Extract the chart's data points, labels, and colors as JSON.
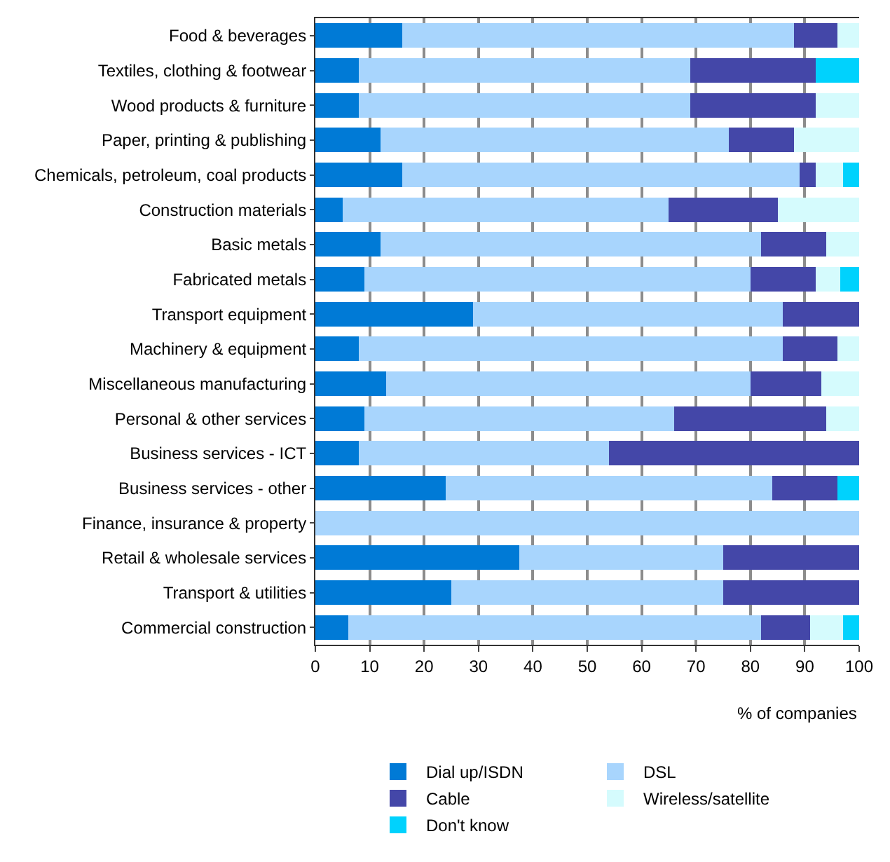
{
  "chart_data": {
    "type": "bar",
    "orientation": "horizontal",
    "stacked": true,
    "xlabel": "% of companies",
    "categories": [
      "Food & beverages",
      "Textiles, clothing & footwear",
      "Wood products & furniture",
      "Paper, printing & publishing",
      "Chemicals, petroleum, coal products",
      "Construction materials",
      "Basic metals",
      "Fabricated metals",
      "Transport equipment",
      "Machinery & equipment",
      "Miscellaneous manufacturing",
      "Personal & other services",
      "Business services - ICT",
      "Business services - other",
      "Finance, insurance & property",
      "Retail & wholesale services",
      "Transport & utilities",
      "Commercial construction"
    ],
    "series": [
      {
        "name": "Dial up/ISDN",
        "color": "#007ad6",
        "values": [
          16,
          8,
          8,
          12,
          16,
          5,
          12,
          9,
          29,
          8,
          13,
          9,
          8,
          24,
          0,
          37.5,
          25,
          6
        ]
      },
      {
        "name": "DSL",
        "color": "#a8d5fd",
        "values": [
          72,
          61,
          61,
          64,
          73,
          60,
          70,
          71,
          57,
          78,
          67,
          57,
          46,
          60,
          100,
          37.5,
          50,
          76
        ]
      },
      {
        "name": "Cable",
        "color": "#4447a8",
        "values": [
          8,
          23,
          23,
          12,
          3,
          20,
          12,
          12,
          14,
          10,
          13,
          28,
          46,
          12,
          0,
          25,
          25,
          9
        ]
      },
      {
        "name": "Wireless/satellite",
        "color": "#d5fbfd",
        "values": [
          4,
          0,
          8,
          12,
          5,
          15,
          6,
          4.5,
          0,
          4,
          7,
          6,
          0,
          0,
          0,
          0,
          0,
          6
        ]
      },
      {
        "name": "Don't know",
        "color": "#00d2fd",
        "values": [
          0,
          8,
          0,
          0,
          3,
          0,
          0,
          3.5,
          0,
          0,
          0,
          0,
          0,
          4,
          0,
          0,
          0,
          3
        ]
      }
    ],
    "xlim": [
      0,
      100
    ],
    "xticks": [
      0,
      10,
      20,
      30,
      40,
      50,
      60,
      70,
      80,
      90,
      100
    ],
    "grid": "x",
    "legend": "bottom"
  }
}
